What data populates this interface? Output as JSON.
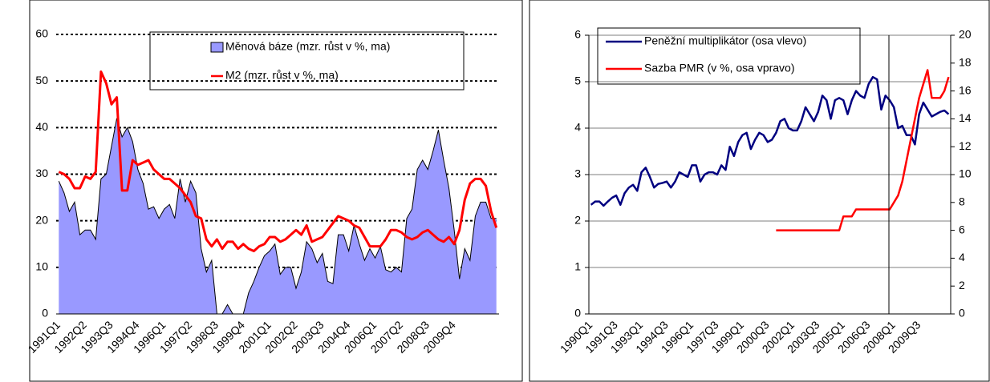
{
  "chart_data": [
    {
      "type": "area",
      "categories": [
        "1991Q1",
        null,
        null,
        null,
        null,
        "1992Q2",
        null,
        null,
        null,
        null,
        "1993Q3",
        null,
        null,
        null,
        null,
        "1994Q4",
        null,
        null,
        null,
        null,
        "1996Q1",
        null,
        null,
        null,
        null,
        "1997Q2",
        null,
        null,
        null,
        null,
        "1998Q3",
        null,
        null,
        null,
        null,
        "1999Q4",
        null,
        null,
        null,
        null,
        "2001Q1",
        null,
        null,
        null,
        null,
        "2002Q2",
        null,
        null,
        null,
        null,
        "2003Q3",
        null,
        null,
        null,
        null,
        "2004Q4",
        null,
        null,
        null,
        null,
        "2006Q1",
        null,
        null,
        null,
        null,
        "2007Q2",
        null,
        null,
        null,
        null,
        "2008Q3",
        null,
        null,
        null,
        null,
        "2009Q4",
        null,
        null,
        null,
        null,
        null,
        null,
        null,
        null
      ],
      "series": [
        {
          "name": "Měnová báze (mzr. růst v %, ma)",
          "type": "area",
          "color": "#9999ff",
          "values": [
            28.5,
            26,
            22,
            24,
            17,
            18,
            18,
            16,
            29,
            30,
            36,
            42,
            38,
            40,
            37,
            31,
            28,
            22.5,
            23,
            20.5,
            22.5,
            23.5,
            20.5,
            29,
            24,
            28.5,
            26,
            14,
            9,
            11.5,
            0,
            0,
            2,
            0,
            0,
            0,
            4.5,
            7,
            10,
            12.5,
            13.5,
            15,
            8.5,
            10,
            10,
            5.5,
            9,
            15.5,
            14,
            11,
            13,
            7,
            6.5,
            17,
            17,
            13.5,
            19,
            15,
            11.5,
            14,
            12,
            14.5,
            9.5,
            9,
            10,
            9,
            20.5,
            22.5,
            31,
            33,
            31,
            35,
            39.5,
            33,
            27,
            18,
            7.5,
            14,
            11.5,
            21,
            24,
            24,
            20.5,
            20.5
          ]
        },
        {
          "name": "M2 (mzr. růst v %, ma)",
          "type": "line",
          "color": "#ff0000",
          "values": [
            30.5,
            30,
            29,
            27,
            27,
            29.5,
            29,
            30.5,
            52,
            49.5,
            45,
            46.5,
            26.5,
            26.5,
            33,
            32,
            32.5,
            33,
            31,
            30,
            29,
            29,
            28,
            27,
            25.5,
            24,
            21,
            20.5,
            16,
            14.5,
            16,
            14,
            15.5,
            15.5,
            14,
            15,
            14,
            13.5,
            14.5,
            15,
            16.5,
            16.5,
            15.5,
            16,
            17,
            18,
            17,
            19,
            15.5,
            16,
            16.5,
            18,
            19.5,
            21,
            20.5,
            20,
            19,
            18.5,
            16.5,
            14.5,
            14.5,
            14.5,
            16,
            18,
            18,
            17.5,
            16.5,
            16,
            16.5,
            17.5,
            18,
            17,
            16,
            15.5,
            16.5,
            15,
            18,
            24.5,
            28,
            29,
            29,
            27.5,
            22,
            18.5
          ]
        }
      ],
      "ylim": [
        0,
        60
      ],
      "yticks": [
        0,
        10,
        20,
        30,
        40,
        50,
        60
      ],
      "grid": true,
      "grid_style": "dotted",
      "legend": "top-right"
    },
    {
      "type": "line",
      "categories": [
        "1990Q1",
        null,
        null,
        null,
        null,
        null,
        "1991Q3",
        null,
        null,
        null,
        null,
        null,
        "1993Q1",
        null,
        null,
        null,
        null,
        null,
        "1994Q3",
        null,
        null,
        null,
        null,
        null,
        "1996Q1",
        null,
        null,
        null,
        null,
        null,
        "1997Q3",
        null,
        null,
        null,
        null,
        null,
        "1999Q1",
        null,
        null,
        null,
        null,
        null,
        "2000Q3",
        null,
        null,
        null,
        null,
        null,
        "2002Q1",
        null,
        null,
        null,
        null,
        null,
        "2003Q3",
        null,
        null,
        null,
        null,
        null,
        "2005Q1",
        null,
        null,
        null,
        null,
        null,
        "2006Q3",
        null,
        null,
        null,
        null,
        null,
        "2008Q1",
        null,
        null,
        null,
        null,
        null,
        "2009Q3",
        null,
        null,
        null,
        null,
        null,
        null,
        null
      ],
      "series": [
        {
          "name": "Peněžní multiplikátor (osa vlevo)",
          "color": "#000080",
          "values": [
            2.35,
            2.42,
            2.42,
            2.33,
            2.42,
            2.5,
            2.55,
            2.35,
            2.6,
            2.72,
            2.78,
            2.65,
            3.05,
            3.15,
            2.95,
            2.72,
            2.8,
            2.82,
            2.85,
            2.72,
            2.85,
            3.05,
            3.0,
            2.95,
            3.2,
            3.2,
            2.85,
            3.0,
            3.05,
            3.05,
            3.0,
            3.2,
            3.1,
            3.6,
            3.4,
            3.7,
            3.85,
            3.9,
            3.55,
            3.75,
            3.9,
            3.85,
            3.7,
            3.75,
            3.9,
            4.15,
            4.2,
            4.0,
            3.95,
            3.95,
            4.15,
            4.45,
            4.3,
            4.15,
            4.35,
            4.7,
            4.6,
            4.2,
            4.6,
            4.65,
            4.6,
            4.3,
            4.6,
            4.8,
            4.7,
            4.65,
            4.95,
            5.1,
            5.05,
            4.4,
            4.7,
            4.6,
            4.45,
            4.0,
            4.05,
            3.85,
            3.85,
            3.65,
            4.3,
            4.55,
            4.4,
            4.25,
            4.3,
            4.35,
            4.38,
            4.3
          ]
        },
        {
          "name": "Sazba PMR (v %, osa vpravo)",
          "color": "#ff0000",
          "axis": "y2",
          "values": [
            null,
            null,
            null,
            null,
            null,
            null,
            null,
            null,
            null,
            null,
            null,
            null,
            null,
            null,
            null,
            null,
            null,
            null,
            null,
            null,
            null,
            null,
            null,
            null,
            null,
            null,
            null,
            null,
            null,
            null,
            null,
            null,
            null,
            null,
            null,
            null,
            null,
            null,
            null,
            null,
            null,
            null,
            null,
            null,
            6,
            6,
            6,
            6,
            6,
            6,
            6,
            6,
            6,
            6,
            6,
            6,
            6,
            6,
            6,
            6,
            7,
            7,
            7,
            7.5,
            7.5,
            7.5,
            7.5,
            7.5,
            7.5,
            7.5,
            7.5,
            7.5,
            8,
            8.5,
            9.5,
            11,
            12.5,
            14,
            15.5,
            16.5,
            17.5,
            15.5,
            15.5,
            15.5,
            16,
            17
          ]
        }
      ],
      "ylim": [
        0,
        6
      ],
      "yticks": [
        0,
        1,
        2,
        3,
        4,
        5,
        6
      ],
      "y2lim": [
        0,
        20
      ],
      "y2ticks": [
        0,
        2,
        4,
        6,
        8,
        10,
        12,
        14,
        16,
        18,
        20
      ],
      "grid": true,
      "grid_style": "solid",
      "legend": "top-left"
    }
  ]
}
